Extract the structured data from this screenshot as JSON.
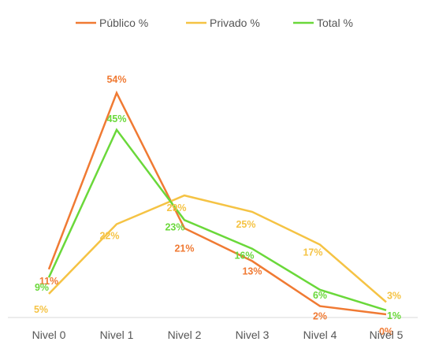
{
  "chart_data": {
    "type": "line",
    "categories": [
      "Nivel 0",
      "Nivel 1",
      "Nivel 2",
      "Nivel 3",
      "Nivel 4",
      "Nivel 5"
    ],
    "series": [
      {
        "name": "Público %",
        "color": "#F07A33",
        "values": [
          11,
          54,
          21,
          13,
          2,
          0
        ],
        "labels": [
          "11%",
          "54%",
          "21%",
          "13%",
          "2%",
          "0%"
        ]
      },
      {
        "name": "Privado %",
        "color": "#F5C344",
        "values": [
          5,
          22,
          29,
          25,
          17,
          3
        ],
        "labels": [
          "5%",
          "22%",
          "29%",
          "25%",
          "17%",
          "3%"
        ]
      },
      {
        "name": "Total %",
        "color": "#6AD83A",
        "values": [
          9,
          45,
          23,
          16,
          6,
          1
        ],
        "labels": [
          "9%",
          "45%",
          "23%",
          "16%",
          "6%",
          "1%"
        ]
      }
    ],
    "legend_position": "top",
    "grid": false,
    "ylim": [
      0,
      54
    ]
  }
}
